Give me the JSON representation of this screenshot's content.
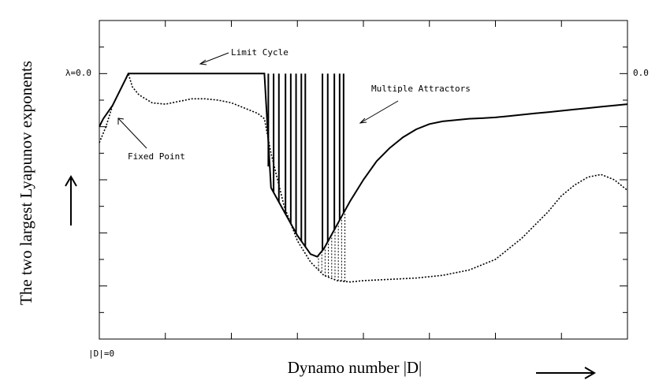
{
  "chart_data": {
    "type": "line",
    "title": "",
    "xlabel": "Dynamo number |D|",
    "ylabel": "The two largest Lyapunov exponents",
    "x_tick_label": "|D|=0",
    "y_zero_label_left": "λ=0.0",
    "y_zero_label_right": "0.0",
    "xlim": [
      0,
      40
    ],
    "ylim": [
      -10,
      2
    ],
    "grid": false,
    "legend": "none",
    "annotations": [
      {
        "text": "Limit Cycle",
        "at_x": 8,
        "at_y": 0
      },
      {
        "text": "Multiple Attractors",
        "at_x": 20,
        "at_y": -2
      },
      {
        "text": "Fixed Point",
        "at_x": 1.5,
        "at_y": -1.8
      }
    ],
    "series": [
      {
        "style": "solid",
        "x": [
          0,
          0.3,
          1,
          2,
          2.2,
          4,
          6,
          8,
          10,
          12.5,
          13,
          14,
          15,
          16,
          16.5,
          17,
          18,
          19,
          20,
          21,
          22,
          23,
          24,
          25,
          26,
          27,
          28,
          29,
          30,
          31,
          32,
          33,
          34,
          35,
          36,
          37,
          38,
          39,
          40
        ],
        "y": [
          -2.0,
          -1.7,
          -1.2,
          -0.2,
          0,
          0,
          0,
          0,
          0,
          0,
          -4.3,
          -5.2,
          -6.1,
          -6.8,
          -6.9,
          -6.6,
          -5.7,
          -4.8,
          -4.0,
          -3.3,
          -2.8,
          -2.4,
          -2.1,
          -1.9,
          -1.8,
          -1.75,
          -1.7,
          -1.68,
          -1.65,
          -1.6,
          -1.55,
          -1.5,
          -1.45,
          -1.4,
          -1.35,
          -1.3,
          -1.25,
          -1.2,
          -1.15
        ]
      },
      {
        "style": "dotted",
        "x": [
          0,
          0.5,
          1,
          2,
          2.2,
          2.5,
          3,
          4,
          5,
          6,
          7,
          8,
          9,
          10,
          11,
          12,
          12.5,
          13,
          14,
          15,
          16,
          17,
          18,
          19,
          20,
          22,
          24,
          26,
          28,
          30,
          32,
          34,
          35,
          36,
          37,
          38,
          39,
          40
        ],
        "y": [
          -2.6,
          -2.0,
          -1.2,
          -0.2,
          0,
          -0.5,
          -0.8,
          -1.1,
          -1.15,
          -1.05,
          -0.95,
          -0.95,
          -1.0,
          -1.1,
          -1.3,
          -1.5,
          -1.7,
          -3.0,
          -5.0,
          -6.3,
          -7.1,
          -7.6,
          -7.8,
          -7.85,
          -7.8,
          -7.75,
          -7.7,
          -7.6,
          -7.4,
          -7.0,
          -6.2,
          -5.2,
          -4.6,
          -4.2,
          -3.9,
          -3.8,
          -4.0,
          -4.4
        ]
      }
    ]
  },
  "colors": {
    "axis": "#000000",
    "line": "#000000",
    "background": "#ffffff"
  },
  "icons": {
    "x_arrow": "right-arrow-icon",
    "y_arrow": "up-arrow-icon"
  }
}
